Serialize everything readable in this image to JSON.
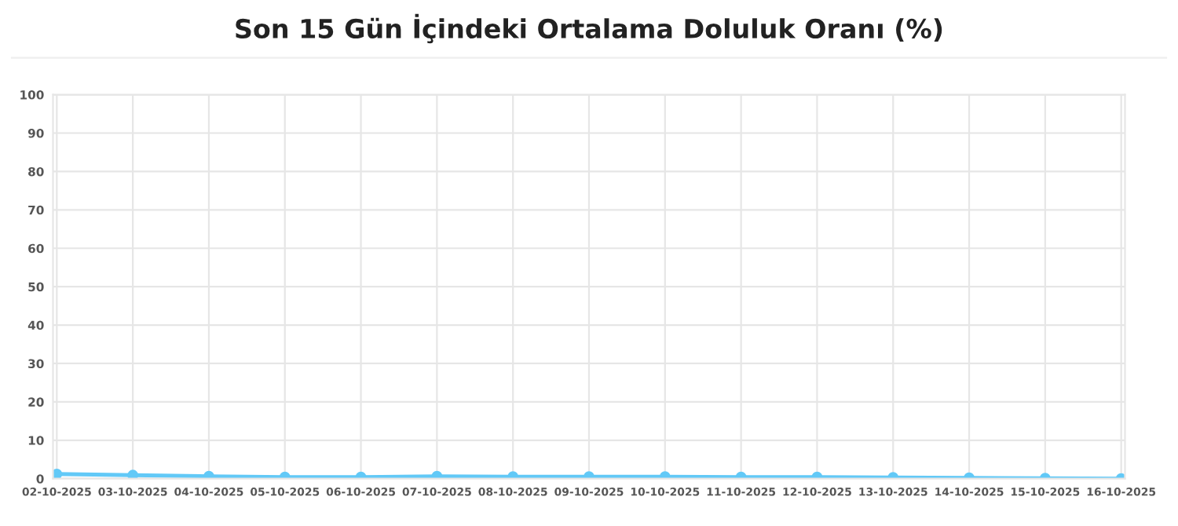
{
  "chart_data": {
    "type": "line",
    "title": "Son 15 Gün İçindeki Ortalama Doluluk Oranı (%)",
    "categories": [
      "02-10-2025",
      "03-10-2025",
      "04-10-2025",
      "05-10-2025",
      "06-10-2025",
      "07-10-2025",
      "08-10-2025",
      "09-10-2025",
      "10-10-2025",
      "11-10-2025",
      "12-10-2025",
      "13-10-2025",
      "14-10-2025",
      "15-10-2025",
      "16-10-2025"
    ],
    "series": [
      {
        "color": "#62c9f7",
        "values": [
          1.2,
          0.9,
          0.6,
          0.4,
          0.4,
          0.6,
          0.5,
          0.5,
          0.5,
          0.4,
          0.4,
          0.3,
          0.2,
          0.1,
          0.0
        ]
      }
    ],
    "ylim": [
      0,
      100
    ],
    "yticks": [
      0,
      10,
      20,
      30,
      40,
      50,
      60,
      70,
      80,
      90,
      100
    ],
    "grid": true,
    "marker": "circle",
    "line_style": "solid"
  }
}
